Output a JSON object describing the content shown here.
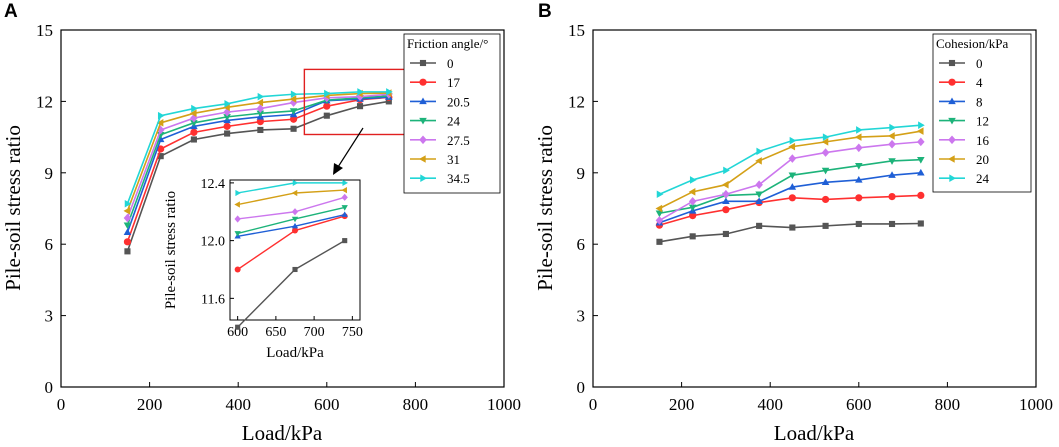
{
  "chart_data": [
    {
      "panel": "A",
      "type": "line",
      "xlabel": "Load/kPa",
      "ylabel": "Pile-soil stress ratio",
      "xlim": [
        0,
        1000
      ],
      "ylim": [
        0,
        15
      ],
      "xticks": [
        0,
        200,
        400,
        600,
        800,
        1000
      ],
      "yticks": [
        0,
        3,
        6,
        9,
        12,
        15
      ],
      "legend_title": "Friction angle/°",
      "x": [
        150,
        225,
        300,
        375,
        450,
        525,
        600,
        675,
        740
      ],
      "series": [
        {
          "name": "0",
          "color": "#555555",
          "marker": "square",
          "values": [
            5.7,
            9.7,
            10.4,
            10.65,
            10.8,
            10.85,
            11.4,
            11.8,
            12.0
          ]
        },
        {
          "name": "17",
          "color": "#ff3030",
          "marker": "circle",
          "values": [
            6.1,
            10.0,
            10.7,
            10.95,
            11.15,
            11.25,
            11.8,
            12.07,
            12.17
          ]
        },
        {
          "name": "20.5",
          "color": "#1f5fd6",
          "marker": "triangle-up",
          "values": [
            6.5,
            10.4,
            10.95,
            11.2,
            11.35,
            11.45,
            12.03,
            12.1,
            12.18
          ]
        },
        {
          "name": "24",
          "color": "#1db37a",
          "marker": "triangle-down",
          "values": [
            6.8,
            10.6,
            11.1,
            11.35,
            11.5,
            11.6,
            12.05,
            12.15,
            12.23
          ]
        },
        {
          "name": "27.5",
          "color": "#cc77ee",
          "marker": "diamond",
          "values": [
            7.1,
            10.8,
            11.3,
            11.55,
            11.7,
            11.95,
            12.15,
            12.2,
            12.3
          ]
        },
        {
          "name": "31",
          "color": "#d4a017",
          "marker": "triangle-left",
          "values": [
            7.4,
            11.1,
            11.5,
            11.75,
            11.95,
            12.1,
            12.25,
            12.33,
            12.35
          ]
        },
        {
          "name": "34.5",
          "color": "#22d6d6",
          "marker": "triangle-right",
          "values": [
            7.7,
            11.4,
            11.7,
            11.9,
            12.2,
            12.3,
            12.33,
            12.4,
            12.4
          ]
        }
      ],
      "inset": {
        "xlabel": "Load/kPa",
        "ylabel": "Pile-soil stress ratio",
        "xlim": [
          590,
          760
        ],
        "ylim": [
          11.45,
          12.42
        ],
        "xticks": [
          600,
          650,
          700,
          750
        ],
        "yticks": [
          11.6,
          12.0,
          12.4
        ],
        "x": [
          600,
          675,
          740
        ]
      }
    },
    {
      "panel": "B",
      "type": "line",
      "xlabel": "Load/kPa",
      "ylabel": "Pile-soil stress ratio",
      "xlim": [
        0,
        1000
      ],
      "ylim": [
        0,
        15
      ],
      "xticks": [
        0,
        200,
        400,
        600,
        800,
        1000
      ],
      "yticks": [
        0,
        3,
        6,
        9,
        12,
        15
      ],
      "legend_title": "Cohesion/kPa",
      "x": [
        150,
        225,
        300,
        375,
        450,
        525,
        600,
        675,
        740
      ],
      "series": [
        {
          "name": "0",
          "color": "#555555",
          "marker": "square",
          "values": [
            6.1,
            6.33,
            6.43,
            6.77,
            6.7,
            6.77,
            6.85,
            6.85,
            6.87
          ]
        },
        {
          "name": "4",
          "color": "#ff3030",
          "marker": "circle",
          "values": [
            6.8,
            7.2,
            7.45,
            7.75,
            7.95,
            7.88,
            7.95,
            8.0,
            8.05
          ]
        },
        {
          "name": "8",
          "color": "#1f5fd6",
          "marker": "triangle-up",
          "values": [
            6.9,
            7.4,
            7.8,
            7.8,
            8.4,
            8.6,
            8.7,
            8.9,
            9.0
          ]
        },
        {
          "name": "12",
          "color": "#1db37a",
          "marker": "triangle-down",
          "values": [
            7.3,
            7.55,
            8.05,
            8.1,
            8.9,
            9.1,
            9.3,
            9.5,
            9.55
          ]
        },
        {
          "name": "16",
          "color": "#cc77ee",
          "marker": "diamond",
          "values": [
            7.0,
            7.8,
            8.1,
            8.5,
            9.6,
            9.85,
            10.05,
            10.2,
            10.3
          ]
        },
        {
          "name": "20",
          "color": "#d4a017",
          "marker": "triangle-left",
          "values": [
            7.5,
            8.2,
            8.5,
            9.5,
            10.1,
            10.3,
            10.5,
            10.55,
            10.75
          ]
        },
        {
          "name": "24",
          "color": "#22d6d6",
          "marker": "triangle-right",
          "values": [
            8.1,
            8.7,
            9.1,
            9.9,
            10.35,
            10.5,
            10.8,
            10.9,
            11.0
          ]
        }
      ]
    }
  ]
}
